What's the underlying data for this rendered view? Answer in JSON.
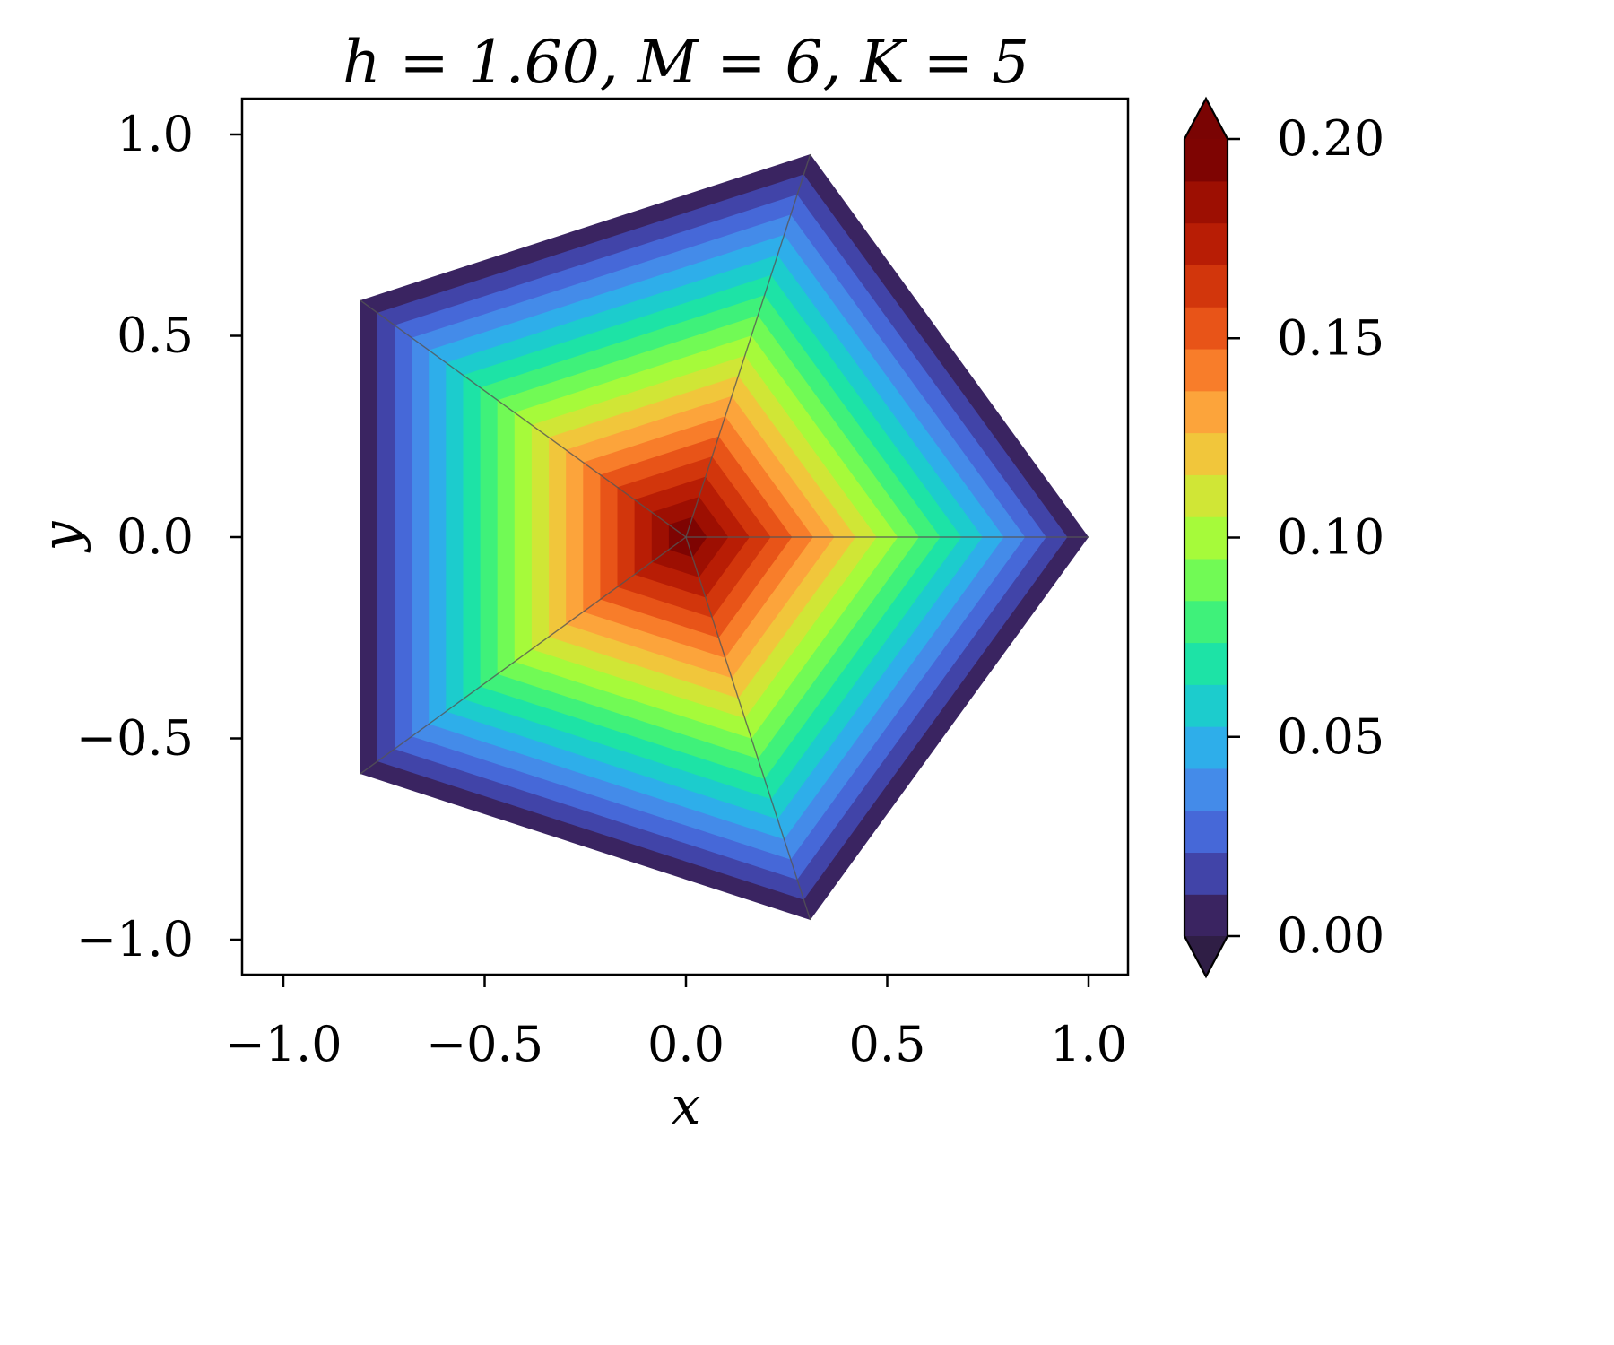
{
  "chart_data": {
    "type": "contourf",
    "title": "h = 1.60, M = 6, K = 5",
    "xlabel": "x",
    "ylabel": "y",
    "xlim": [
      -1.1,
      1.1
    ],
    "ylim": [
      -1.1,
      1.1
    ],
    "xticks": [
      -1.0,
      -0.5,
      0.0,
      0.5,
      1.0
    ],
    "xtick_labels": [
      "−1.0",
      "−0.5",
      "0.0",
      "0.5",
      "1.0"
    ],
    "yticks": [
      -1.0,
      -0.5,
      0.0,
      0.5,
      1.0
    ],
    "ytick_labels": [
      "−1.0",
      "−0.5",
      "0.0",
      "0.5",
      "1.0"
    ],
    "grid": false,
    "domain": {
      "shape": "regular pentagon",
      "vertices": [
        [
          1.0,
          0.0
        ],
        [
          0.309,
          0.951
        ],
        [
          -0.809,
          0.588
        ],
        [
          -0.809,
          -0.588
        ],
        [
          0.309,
          -0.951
        ]
      ],
      "center": [
        0.0,
        0.0
      ]
    },
    "value_at_center": 0.2,
    "value_at_boundary": 0.0,
    "colorbar": {
      "vmin": 0.0,
      "vmax": 0.2,
      "levels": 19,
      "extend": "both",
      "ticks": [
        0.0,
        0.05,
        0.1,
        0.15,
        0.2
      ],
      "tick_labels": [
        "0.00",
        "0.05",
        "0.10",
        "0.15",
        "0.20"
      ],
      "colors": [
        "#3a2461",
        "#4144a8",
        "#4668d8",
        "#448be9",
        "#2eaeea",
        "#1ccccd",
        "#1de3a6",
        "#3ff17a",
        "#71fa55",
        "#a6fa3a",
        "#d0e636",
        "#f1c63b",
        "#fca43b",
        "#f87d2a",
        "#e85418",
        "#d2360c",
        "#b81d05",
        "#9d0f02",
        "#7e0402"
      ],
      "under_color": "#2f1e45",
      "over_color": "#7a0403"
    }
  }
}
